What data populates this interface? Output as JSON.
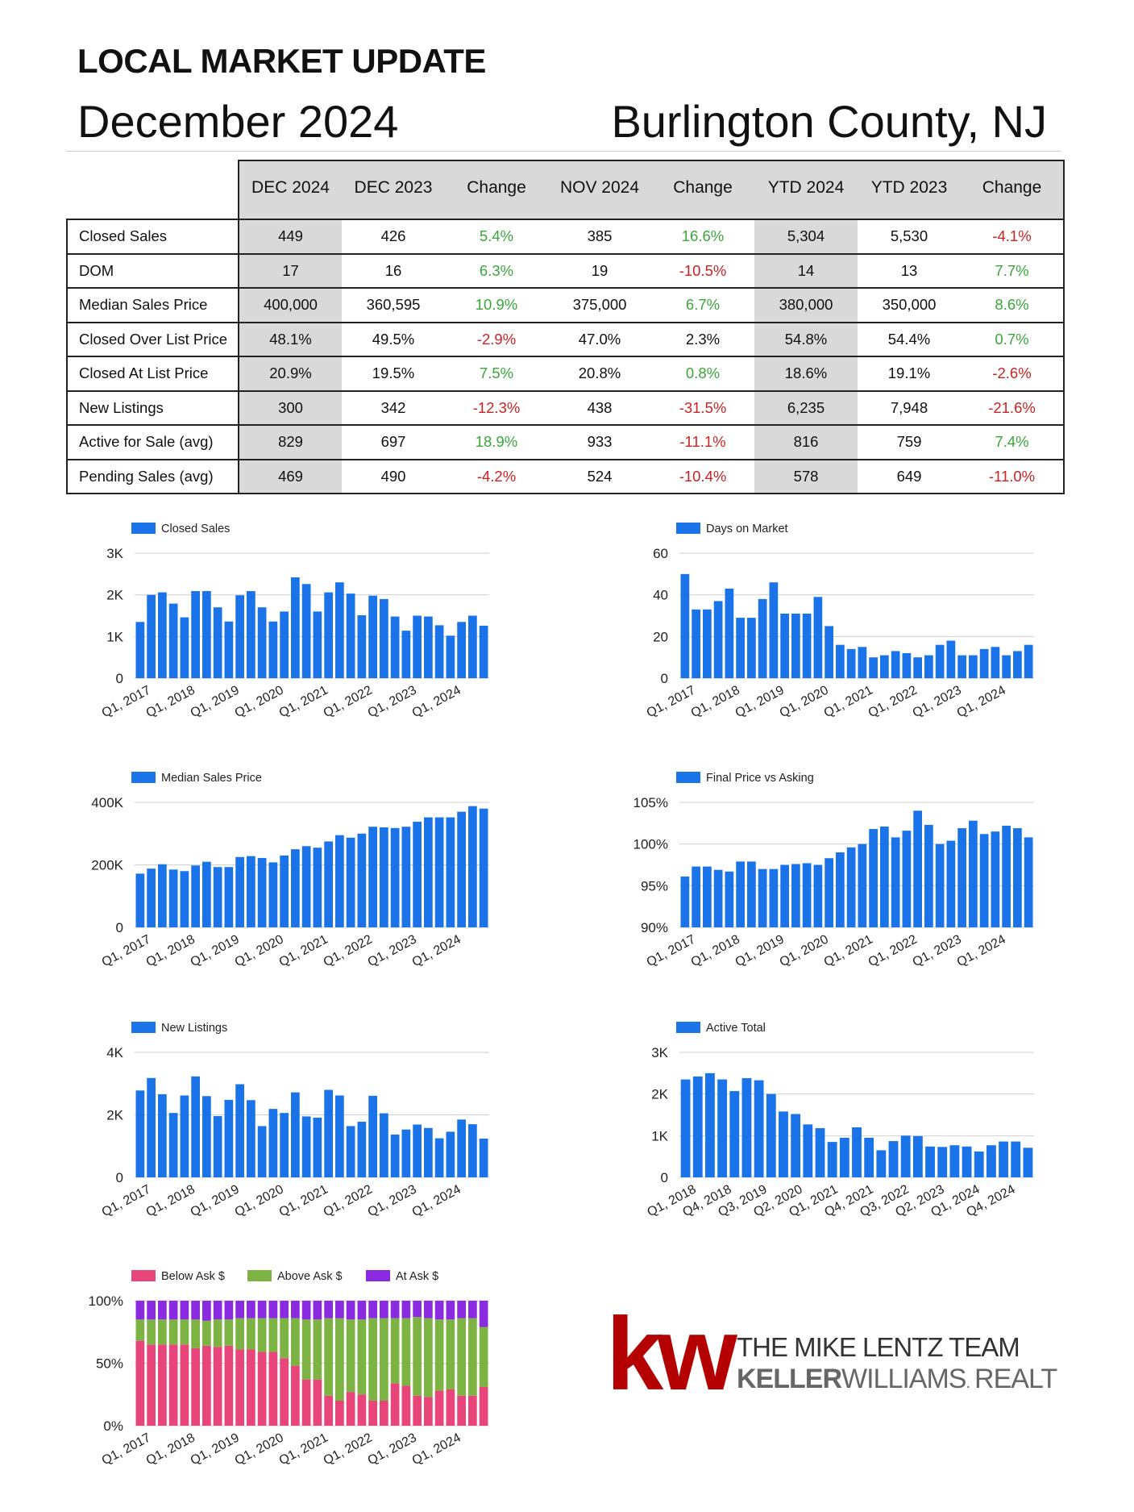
{
  "header": {
    "label": "LOCAL MARKET UPDATE",
    "month": "December 2024",
    "location": "Burlington County, NJ"
  },
  "table": {
    "columns": [
      "DEC 2024",
      "DEC 2023",
      "Change",
      "NOV 2024",
      "Change",
      "YTD 2024",
      "YTD 2023",
      "Change"
    ],
    "rows": [
      {
        "label": "Closed Sales",
        "values": [
          "449",
          "426",
          "5.4%",
          "385",
          "16.6%",
          "5,304",
          "5,530",
          "-4.1%"
        ]
      },
      {
        "label": "DOM",
        "values": [
          "17",
          "16",
          "6.3%",
          "19",
          "-10.5%",
          "14",
          "13",
          "7.7%"
        ]
      },
      {
        "label": "Median Sales Price",
        "values": [
          "400,000",
          "360,595",
          "10.9%",
          "375,000",
          "6.7%",
          "380,000",
          "350,000",
          "8.6%"
        ]
      },
      {
        "label": "Closed Over List Price",
        "values": [
          "48.1%",
          "49.5%",
          "-2.9%",
          "47.0%",
          "2.3%",
          "54.8%",
          "54.4%",
          "0.7%"
        ]
      },
      {
        "label": "Closed At List Price",
        "values": [
          "20.9%",
          "19.5%",
          "7.5%",
          "20.8%",
          "0.8%",
          "18.6%",
          "19.1%",
          "-2.6%"
        ]
      },
      {
        "label": "New Listings",
        "values": [
          "300",
          "342",
          "-12.3%",
          "438",
          "-31.5%",
          "6,235",
          "7,948",
          "-21.6%"
        ]
      },
      {
        "label": "Active for Sale (avg)",
        "values": [
          "829",
          "697",
          "18.9%",
          "933",
          "-11.1%",
          "816",
          "759",
          "7.4%"
        ]
      },
      {
        "label": "Pending Sales (avg)",
        "values": [
          "469",
          "490",
          "-4.2%",
          "524",
          "-10.4%",
          "578",
          "649",
          "-11.0%"
        ]
      }
    ]
  },
  "colors": {
    "bar_blue": "#1a73e8",
    "below_ask": "#e8457a",
    "above_ask": "#7cb342",
    "at_ask": "#8a2be2",
    "positive": "#3aa63a",
    "negative": "#cc2222",
    "kw_red": "#b40000"
  },
  "chart_data": [
    {
      "id": "closed-sales",
      "type": "bar",
      "legend": "Closed Sales",
      "yticks": [
        "0",
        "1K",
        "2K",
        "3K"
      ],
      "ylim": [
        0,
        3000
      ],
      "xticks": [
        "Q1, 2017",
        "Q1, 2018",
        "Q1, 2019",
        "Q1, 2020",
        "Q1, 2021",
        "Q1, 2022",
        "Q1, 2023",
        "Q1, 2024"
      ],
      "values": [
        1350,
        2000,
        2060,
        1790,
        1460,
        2090,
        2090,
        1700,
        1360,
        1990,
        2090,
        1700,
        1360,
        1600,
        2420,
        2260,
        1600,
        2060,
        2300,
        2030,
        1510,
        1980,
        1900,
        1480,
        1140,
        1500,
        1480,
        1270,
        1020,
        1350,
        1500,
        1260
      ]
    },
    {
      "id": "days-on-market",
      "type": "bar",
      "legend": "Days on Market",
      "yticks": [
        "0",
        "20",
        "40",
        "60"
      ],
      "ylim": [
        0,
        60
      ],
      "xticks": [
        "Q1, 2017",
        "Q1, 2018",
        "Q1, 2019",
        "Q1, 2020",
        "Q1, 2021",
        "Q1, 2022",
        "Q1, 2023",
        "Q1, 2024"
      ],
      "values": [
        50,
        33,
        33,
        37,
        43,
        29,
        29,
        38,
        46,
        31,
        31,
        31,
        39,
        25,
        16,
        14,
        15,
        10,
        11,
        13,
        12,
        10,
        11,
        16,
        18,
        11,
        11,
        14,
        15,
        11,
        13,
        16
      ]
    },
    {
      "id": "median-sales-price",
      "type": "bar",
      "legend": "Median Sales Price",
      "yticks": [
        "0",
        "200K",
        "400K"
      ],
      "ylim": [
        0,
        400000
      ],
      "xticks": [
        "Q1, 2017",
        "Q1, 2018",
        "Q1, 2019",
        "Q1, 2020",
        "Q1, 2021",
        "Q1, 2022",
        "Q1, 2023",
        "Q1, 2024"
      ],
      "values": [
        172000,
        188000,
        202000,
        185000,
        180000,
        198000,
        210000,
        193000,
        193000,
        225000,
        228000,
        222000,
        208000,
        230000,
        250000,
        260000,
        255000,
        275000,
        295000,
        287000,
        300000,
        322000,
        320000,
        318000,
        322000,
        338000,
        352000,
        352000,
        352000,
        370000,
        388000,
        380000
      ]
    },
    {
      "id": "final-price-vs-asking",
      "type": "bar",
      "legend": "Final Price vs Asking",
      "yticks": [
        "90%",
        "95%",
        "100%",
        "105%"
      ],
      "ylim": [
        90,
        105
      ],
      "xticks": [
        "Q1, 2017",
        "Q1, 2018",
        "Q1, 2019",
        "Q1, 2020",
        "Q1, 2021",
        "Q1, 2022",
        "Q1, 2023",
        "Q1, 2024"
      ],
      "values": [
        96.1,
        97.3,
        97.3,
        96.9,
        96.7,
        97.9,
        97.9,
        97.0,
        97.0,
        97.5,
        97.6,
        97.7,
        97.5,
        98.3,
        99.0,
        99.6,
        100.0,
        101.8,
        102.1,
        100.8,
        101.6,
        104.0,
        102.3,
        100.0,
        100.4,
        101.9,
        102.8,
        101.2,
        101.5,
        102.2,
        101.9,
        100.8
      ]
    },
    {
      "id": "new-listings",
      "type": "bar",
      "legend": "New Listings",
      "yticks": [
        "0",
        "2K",
        "4K"
      ],
      "ylim": [
        0,
        4000
      ],
      "xticks": [
        "Q1, 2017",
        "Q1, 2018",
        "Q1, 2019",
        "Q1, 2020",
        "Q1, 2021",
        "Q1, 2022",
        "Q1, 2023",
        "Q1, 2024"
      ],
      "values": [
        2780,
        3180,
        2660,
        2060,
        2620,
        3230,
        2600,
        1960,
        2480,
        2980,
        2470,
        1640,
        2190,
        2060,
        2720,
        1950,
        1910,
        2800,
        2620,
        1640,
        1780,
        2610,
        2050,
        1370,
        1530,
        1690,
        1580,
        1250,
        1460,
        1850,
        1700,
        1240
      ]
    },
    {
      "id": "active-total",
      "type": "bar",
      "legend": "Active Total",
      "yticks": [
        "0",
        "1K",
        "2K",
        "3K"
      ],
      "ylim": [
        0,
        3000
      ],
      "xticks": [
        "Q1, 2018",
        "Q4, 2018",
        "Q3, 2019",
        "Q2, 2020",
        "Q1, 2021",
        "Q4, 2021",
        "Q3, 2022",
        "Q2, 2023",
        "Q1, 2024",
        "Q4, 2024"
      ],
      "values": [
        2350,
        2420,
        2500,
        2350,
        2070,
        2380,
        2330,
        2000,
        1580,
        1520,
        1270,
        1180,
        850,
        950,
        1200,
        950,
        650,
        870,
        1000,
        990,
        740,
        730,
        770,
        740,
        620,
        770,
        860,
        860,
        710
      ]
    },
    {
      "id": "ask-breakdown",
      "type": "stacked-bar",
      "yticks": [
        "0%",
        "50%",
        "100%"
      ],
      "ylim": [
        0,
        100
      ],
      "xticks": [
        "Q1, 2017",
        "Q1, 2018",
        "Q1, 2019",
        "Q1, 2020",
        "Q1, 2021",
        "Q1, 2022",
        "Q1, 2023",
        "Q1, 2024"
      ],
      "series": [
        {
          "name": "Below Ask $",
          "values": [
            68,
            65,
            65,
            65,
            65,
            62,
            64,
            63,
            64,
            61,
            61,
            59,
            59,
            54,
            48,
            37,
            37,
            24,
            20,
            27,
            25,
            20,
            20,
            34,
            32,
            24,
            23,
            28,
            29,
            24,
            24,
            31
          ]
        },
        {
          "name": "Above Ask $",
          "values": [
            17,
            20,
            20,
            20,
            20,
            23,
            20,
            22,
            21,
            25,
            25,
            27,
            27,
            32,
            38,
            48,
            48,
            62,
            66,
            58,
            60,
            66,
            66,
            52,
            54,
            63,
            63,
            57,
            56,
            62,
            62,
            48
          ]
        },
        {
          "name": "At Ask $",
          "values": [
            15,
            15,
            15,
            15,
            15,
            15,
            16,
            15,
            15,
            14,
            14,
            14,
            14,
            14,
            14,
            15,
            15,
            14,
            14,
            15,
            15,
            14,
            14,
            14,
            14,
            13,
            14,
            15,
            15,
            14,
            14,
            21
          ]
        }
      ]
    }
  ],
  "logo": {
    "mark": "kw",
    "team": "THE MIKE LENTZ TEAM",
    "brand_bold": "KELLER",
    "brand_light": "WILLIAMS",
    "brand_suffix": "REALTY"
  }
}
